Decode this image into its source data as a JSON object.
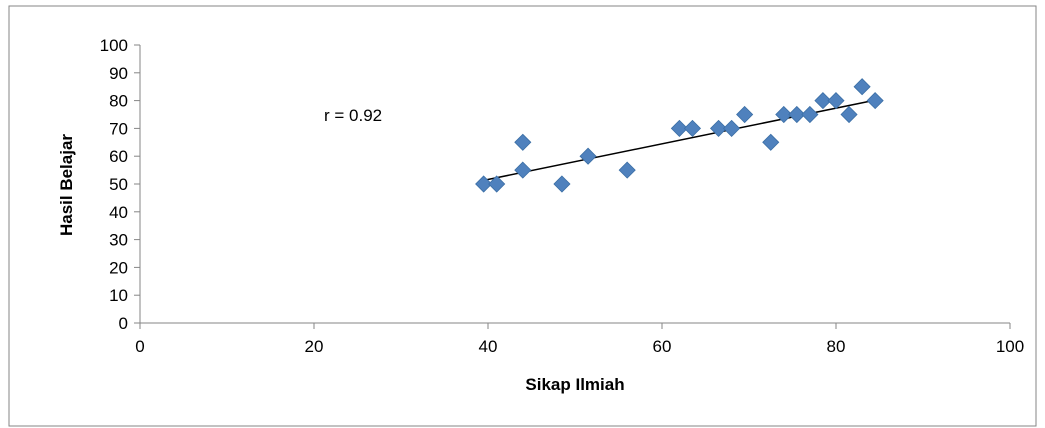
{
  "chart_data": {
    "type": "scatter",
    "title": "",
    "xlabel": "Sikap Ilmiah",
    "ylabel": "Hasil Belajar",
    "xlim": [
      0,
      100
    ],
    "ylim": [
      0,
      100
    ],
    "x_ticks": [
      0,
      20,
      40,
      60,
      80,
      100
    ],
    "y_ticks": [
      0,
      10,
      20,
      30,
      40,
      50,
      60,
      70,
      80,
      90,
      100
    ],
    "grid": false,
    "legend": "none",
    "annotation": "r = 0.92",
    "marker": "diamond",
    "marker_color": "#4F81BD",
    "trendline_color": "#000000",
    "trendline": {
      "x": [
        39.5,
        85
      ],
      "y": [
        51.3,
        80.5
      ]
    },
    "series": [
      {
        "x": [
          39.5,
          41,
          44,
          44,
          48.5,
          51.5,
          56,
          62,
          63.5,
          66.5,
          68,
          69.5,
          72.5,
          74,
          75.5,
          77,
          78.5,
          80,
          81.5,
          83,
          84.5
        ],
        "y": [
          50,
          50,
          65,
          55,
          50,
          60,
          55,
          70,
          70,
          70,
          70,
          75,
          65,
          75,
          75,
          75,
          80,
          80,
          75,
          85,
          80
        ]
      }
    ]
  }
}
